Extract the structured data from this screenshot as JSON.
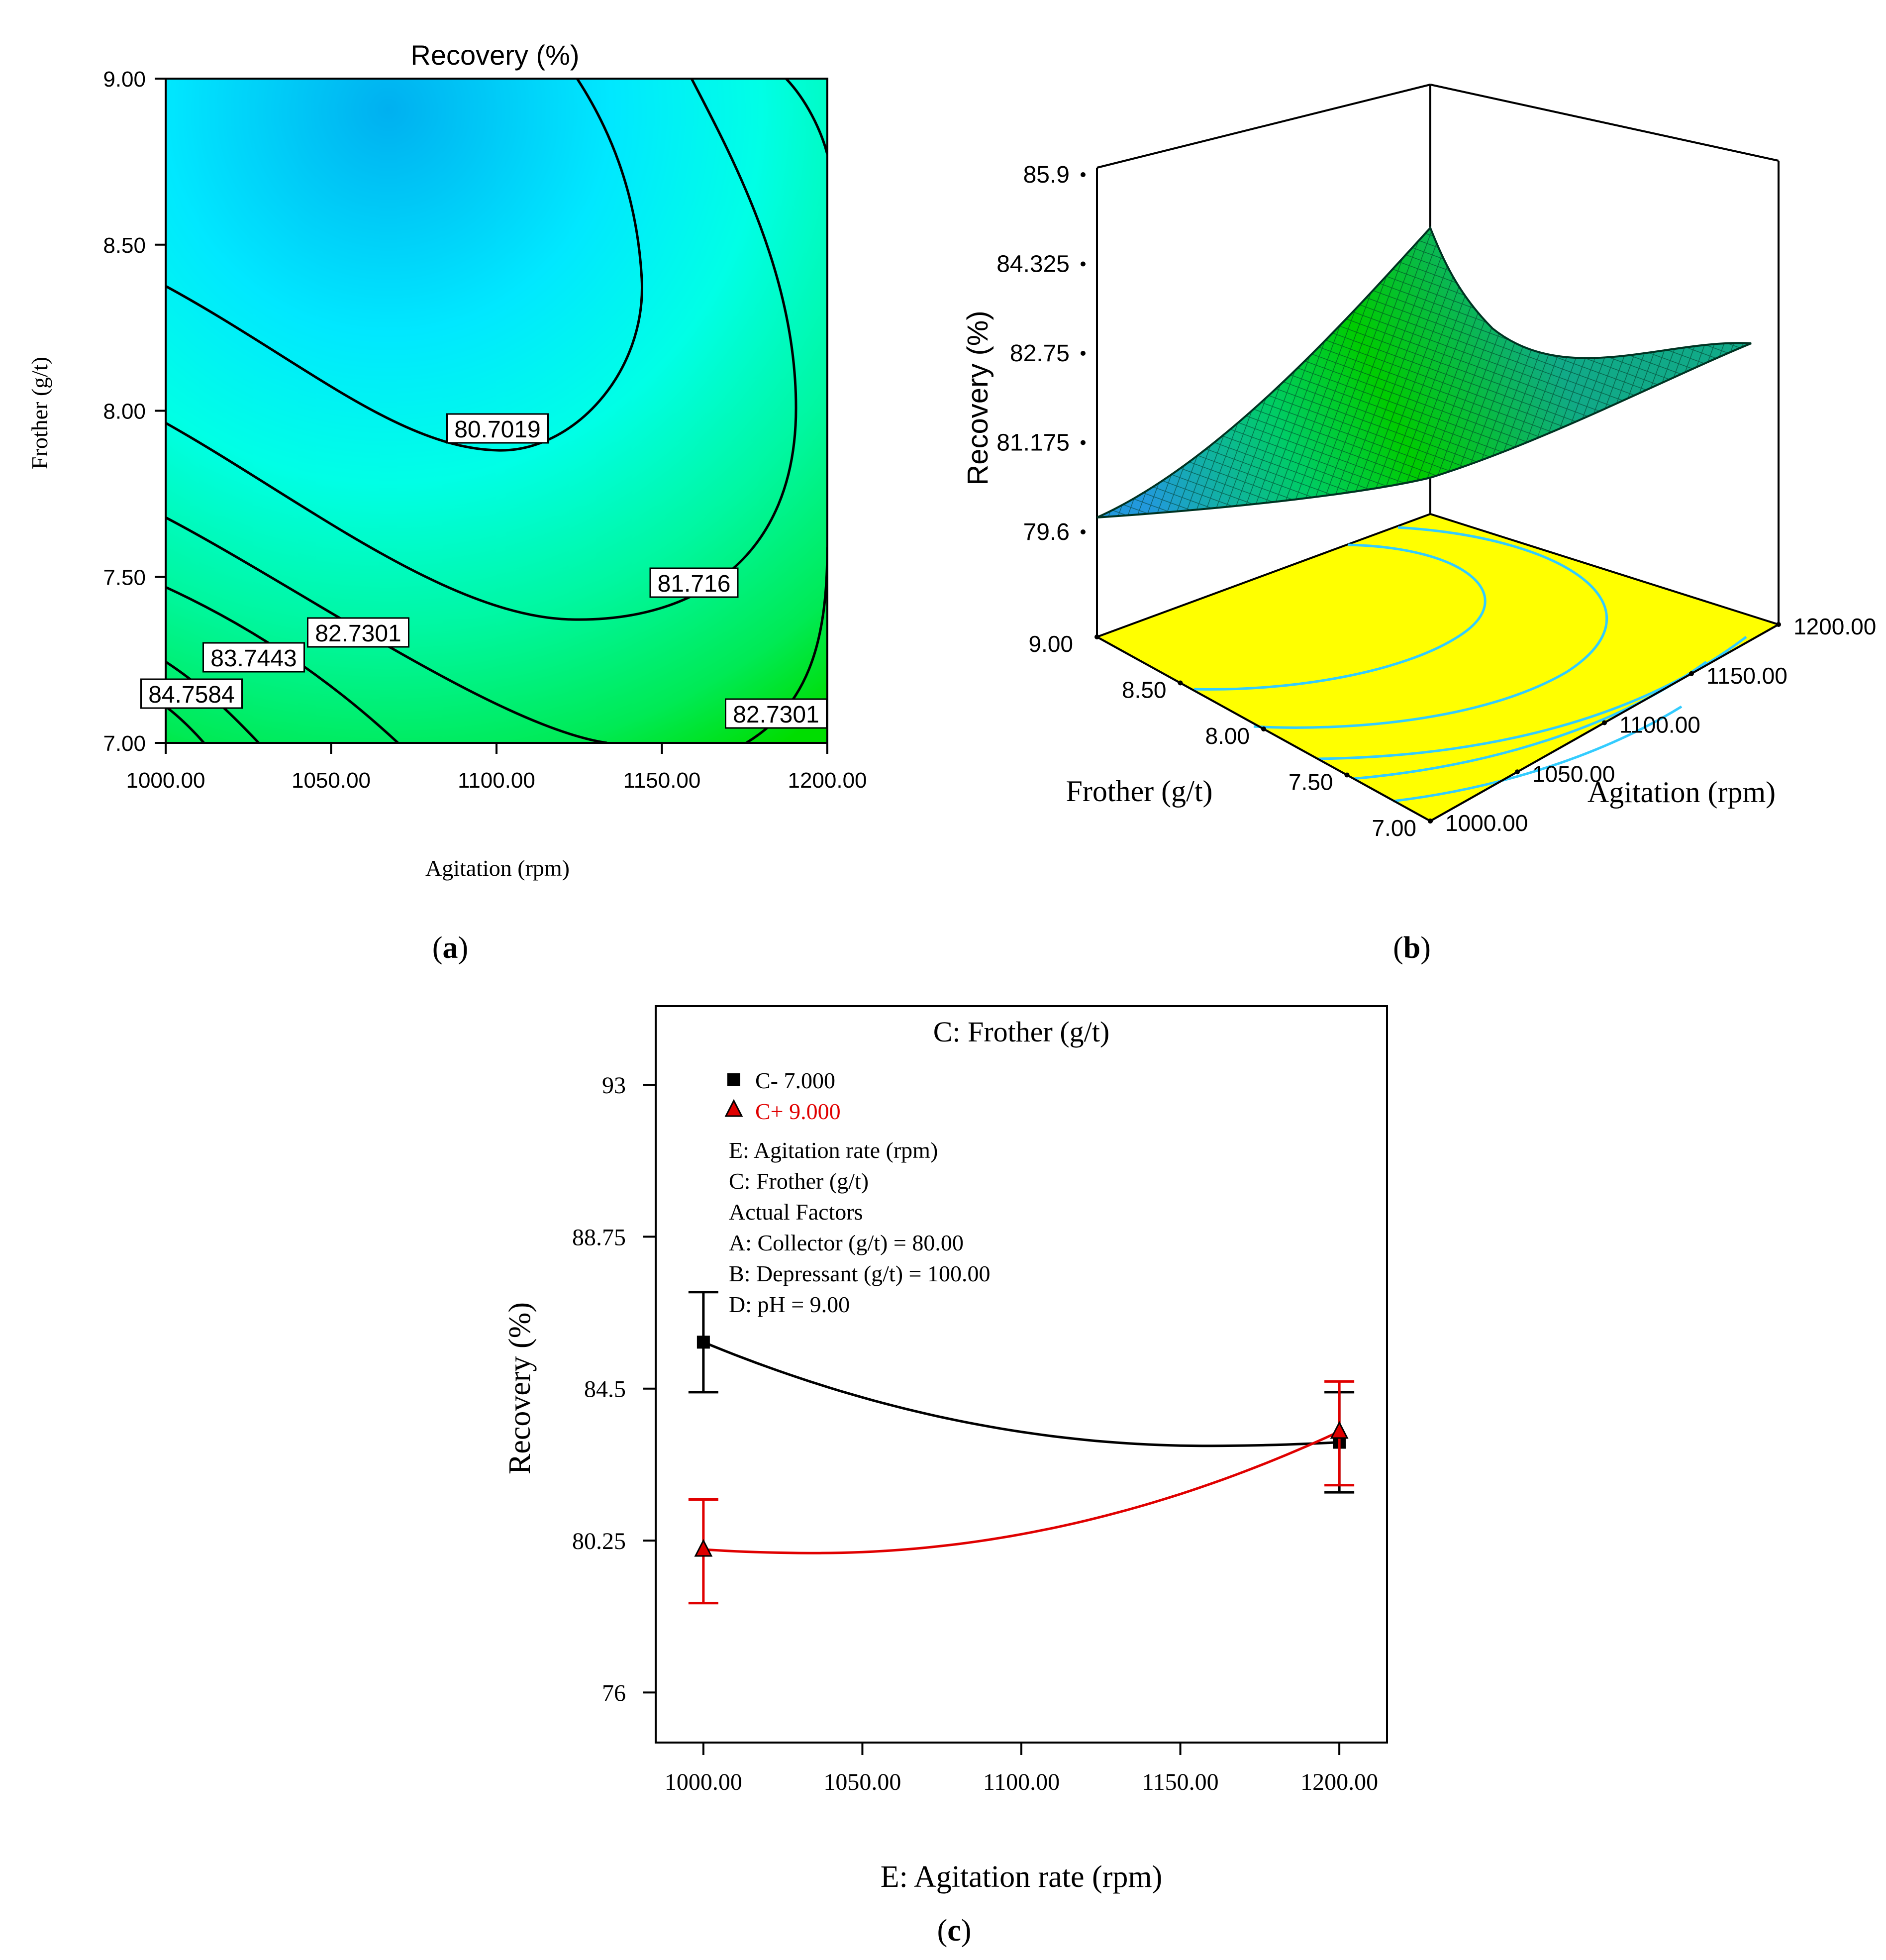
{
  "panels": {
    "a": {
      "caption_letter": "a",
      "chart_data": {
        "type": "contour",
        "title": "Recovery (%)",
        "xlabel": "Agitation (rpm)",
        "ylabel": "Frother (g/t)",
        "xlim": [
          1000,
          1200
        ],
        "ylim": [
          7.0,
          9.0
        ],
        "xticks": [
          "1000.00",
          "1050.00",
          "1100.00",
          "1150.00",
          "1200.00"
        ],
        "yticks": [
          "7.00",
          "7.50",
          "8.00",
          "8.50",
          "9.00"
        ],
        "contour_labels": [
          "80.7019",
          "81.716",
          "82.7301",
          "83.7443",
          "84.7584",
          "82.7301"
        ],
        "colors": {
          "low": "#00b0f0",
          "mid": "#00ffff",
          "high": "#00e000"
        }
      }
    },
    "b": {
      "caption_letter": "b",
      "chart_data": {
        "type": "surface3d",
        "zlabel": "Recovery (%)",
        "xlabel": "Agitation (rpm)",
        "ylabel": "Frother (g/t)",
        "zlim": [
          79.6,
          85.9
        ],
        "zticks": [
          "85.9",
          "84.325",
          "82.75",
          "81.175",
          "79.6"
        ],
        "xticks": [
          "1000.00",
          "1050.00",
          "1100.00",
          "1150.00",
          "1200.00"
        ],
        "yticks": [
          "7.00",
          "7.50",
          "8.00",
          "8.50",
          "9.00"
        ],
        "colors": {
          "floor": "#ffff00",
          "contour": "#33ccff",
          "surface_high": "#00cc00",
          "surface_low": "#2299dd"
        }
      }
    },
    "c": {
      "caption_letter": "c",
      "chart_data": {
        "type": "line",
        "title": "C: Frother (g/t)",
        "xlabel": "E: Agitation rate (rpm)",
        "ylabel": "Recovery (%)",
        "xlim": [
          985,
          1215
        ],
        "ylim": [
          74.6,
          95.2
        ],
        "xticks": [
          "1000.00",
          "1050.00",
          "1100.00",
          "1150.00",
          "1200.00"
        ],
        "yticks": [
          "76",
          "80.25",
          "84.5",
          "88.75",
          "93"
        ],
        "series": [
          {
            "name": "C- 7.000",
            "color": "#000000",
            "marker": "square",
            "x": [
              1000,
              1200
            ],
            "y": [
              85.8,
              83.0
            ],
            "err_low": [
              84.4,
              81.6
            ],
            "err_high": [
              87.2,
              84.4
            ],
            "curve_min": [
              1158,
              82.9
            ]
          },
          {
            "name": "C+ 9.000",
            "color": "#e00000",
            "marker": "triangle",
            "x": [
              1000,
              1200
            ],
            "y": [
              80.0,
              83.3
            ],
            "err_low": [
              78.5,
              81.8
            ],
            "err_high": [
              81.4,
              84.7
            ],
            "curve_min": [
              1035,
              79.9
            ]
          }
        ],
        "legend": {
          "entries": [
            "C- 7.000",
            "C+ 9.000"
          ],
          "info": [
            "E: Agitation rate (rpm)",
            "C: Frother (g/t)",
            "Actual Factors",
            "A: Collector (g/t) = 80.00",
            "B: Depressant (g/t) = 100.00",
            "D: pH = 9.00"
          ]
        }
      }
    }
  }
}
